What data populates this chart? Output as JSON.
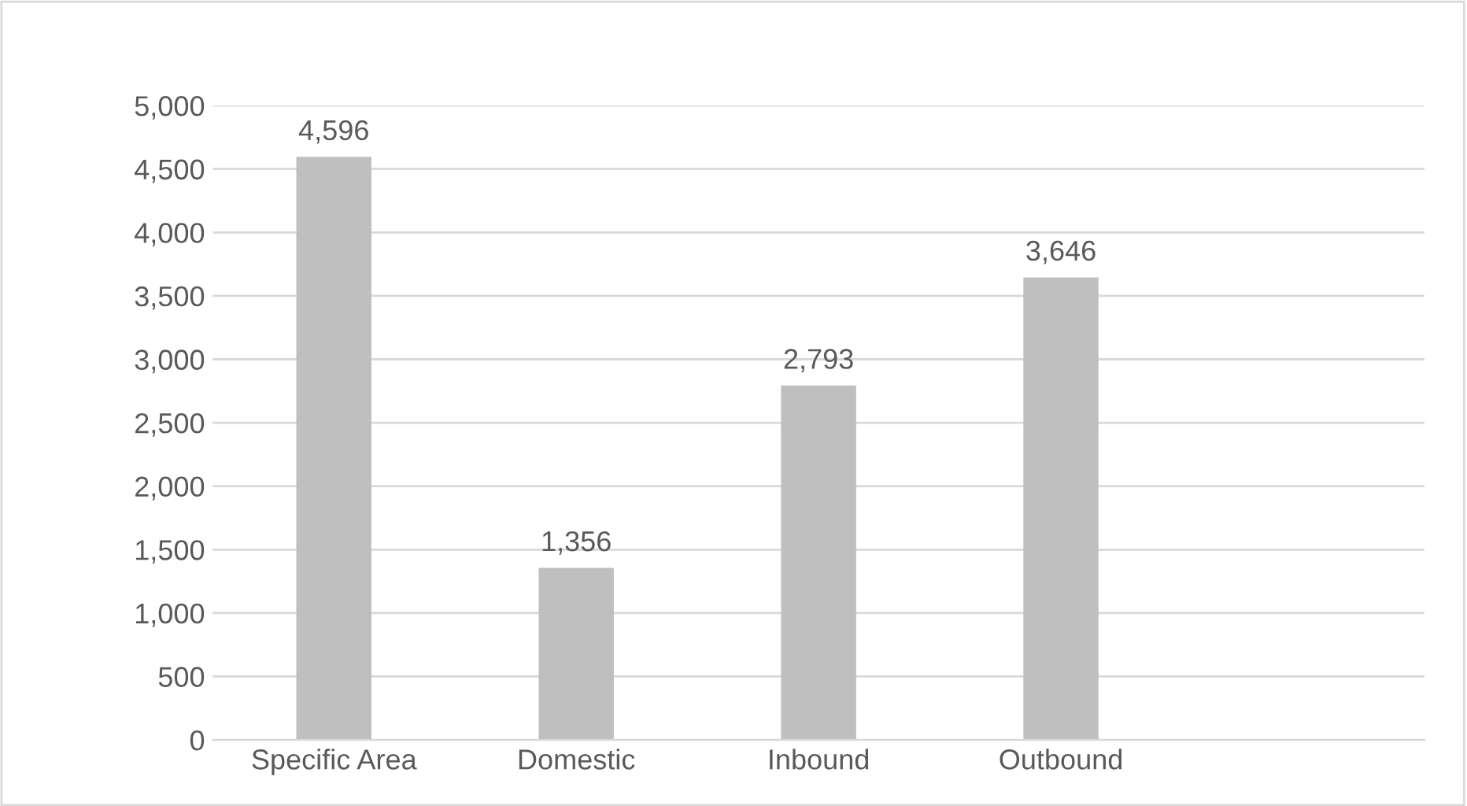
{
  "chart_data": {
    "type": "bar",
    "categories": [
      "Specific Area",
      "Domestic",
      "Inbound",
      "Outbound",
      null
    ],
    "values": [
      4596,
      1356,
      2793,
      3646,
      null
    ],
    "value_labels": [
      "4,596",
      "1,356",
      "2,793",
      "3,646",
      null
    ],
    "color": "#bfbfbf",
    "ylim": [
      0,
      5000
    ],
    "yticks": [
      {
        "value": 0,
        "label": "0"
      },
      {
        "value": 500,
        "label": "500"
      },
      {
        "value": 1000,
        "label": "1,000"
      },
      {
        "value": 1500,
        "label": "1,500"
      },
      {
        "value": 2000,
        "label": "2,000"
      },
      {
        "value": 2500,
        "label": "2,500"
      },
      {
        "value": 3000,
        "label": "3,000"
      },
      {
        "value": 3500,
        "label": "3,500"
      },
      {
        "value": 4000,
        "label": "4,000"
      },
      {
        "value": 4500,
        "label": "4,500"
      },
      {
        "value": 5000,
        "label": "5,000"
      }
    ],
    "grid": "y"
  }
}
